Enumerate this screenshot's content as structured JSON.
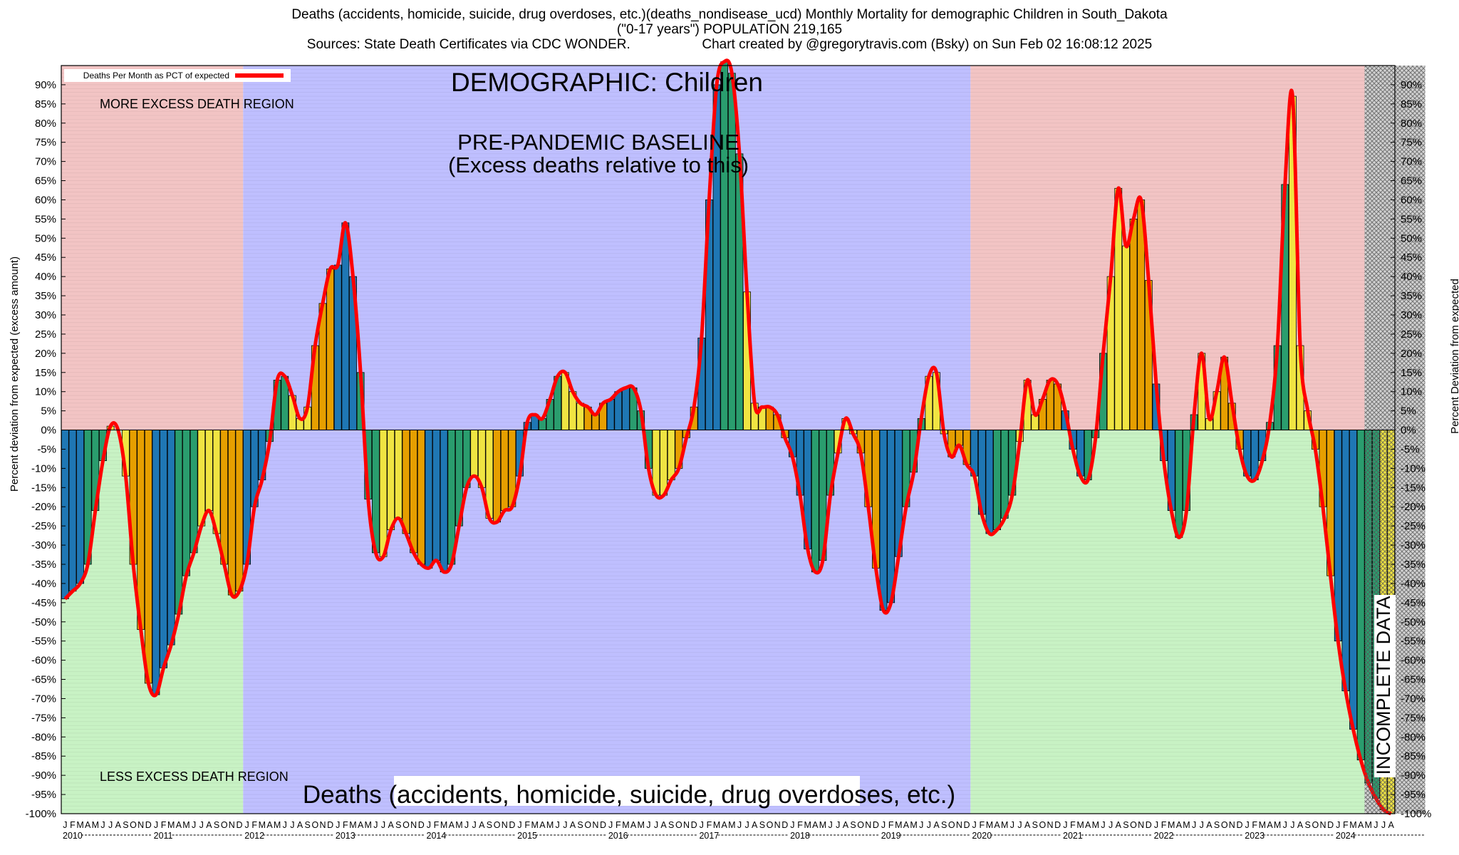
{
  "header": {
    "line1": "Deaths (accidents, homicide, suicide, drug overdoses, etc.)(deaths_nondisease_ucd) Monthly Mortality for demographic Children in South_Dakota",
    "line2": "(\"0-17 years\") POPULATION 219,165",
    "line3_left": "Sources: State Death Certificates via CDC WONDER.",
    "line3_right": "Chart created by @gregorytravis.com (Bsky) on Sun Feb 02 16:08:12 2025"
  },
  "chart_data": {
    "type": "bar",
    "title": "Deaths (accidents, homicide, suicide, drug overdoses, etc.)(deaths_nondisease_ucd) Monthly Mortality for demographic Children in South_Dakota",
    "ylabel_left": "Percent deviation from expected (excess amount)",
    "ylabel_right": "Percent Deviation from expected",
    "ylim": [
      -100,
      95
    ],
    "y_ticks": [
      90,
      85,
      80,
      75,
      70,
      65,
      60,
      55,
      50,
      45,
      40,
      35,
      30,
      25,
      20,
      15,
      10,
      5,
      0,
      -5,
      -10,
      -15,
      -20,
      -25,
      -30,
      -35,
      -40,
      -45,
      -50,
      -55,
      -60,
      -65,
      -70,
      -75,
      -80,
      -85,
      -90,
      -95,
      -100
    ],
    "years": [
      "2010",
      "2011",
      "2012",
      "2013",
      "2014",
      "2015",
      "2016",
      "2017",
      "2018",
      "2019",
      "2020",
      "2021",
      "2022",
      "2023",
      "2024"
    ],
    "month_letters": [
      "J",
      "F",
      "M",
      "A",
      "M",
      "J",
      "J",
      "A",
      "S",
      "O",
      "N",
      "D"
    ],
    "legend": "Deaths Per Month as PCT of expected",
    "grid": true,
    "season_colors": [
      "#1f77b4",
      "#2a9d6e",
      "#f0e442",
      "#e69f00"
    ],
    "line_color": "#ff0000",
    "regions": [
      {
        "label": "pre-2012",
        "start": "2010-01",
        "end": "2011-12",
        "above_color": "#f2c4c4",
        "below_color": "#c8f2c4"
      },
      {
        "label": "baseline",
        "start": "2012-01",
        "end": "2019-12",
        "color": "#bfbfff"
      },
      {
        "label": "post-2020",
        "start": "2020-01",
        "end": "2024-04",
        "above_color": "#f2c4c4",
        "below_color": "#c8f2c4"
      },
      {
        "label": "incomplete",
        "start": "2024-05",
        "end": "2024-12",
        "color": "#d3d3d3"
      }
    ],
    "annotations": {
      "demographic": "DEMOGRAPHIC: Children",
      "baseline_1": "PRE-PANDEMIC BASELINE",
      "baseline_2": "(Excess deaths relative to this)",
      "more_excess": "MORE EXCESS DEATH REGION",
      "less_excess": "LESS EXCESS DEATH REGION",
      "incomplete": "INCOMPLETE DATA",
      "bottom": "Deaths (accidents, homicide, suicide, drug overdoses, etc.)"
    },
    "values": [
      -44,
      -42,
      -40,
      -35,
      -21,
      -8,
      1,
      0,
      -12,
      -35,
      -52,
      -66,
      -69,
      -62,
      -56,
      -48,
      -38,
      -32,
      -25,
      -21,
      -27,
      -35,
      -43,
      -42,
      -35,
      -20,
      -13,
      -3,
      13,
      14,
      9,
      3,
      6,
      22,
      33,
      42,
      43,
      54,
      40,
      15,
      -18,
      -32,
      -33,
      -26,
      -23,
      -27,
      -32,
      -35,
      -36,
      -34,
      -37,
      -35,
      -25,
      -15,
      -12,
      -15,
      -23,
      -24,
      -21,
      -20,
      -12,
      2,
      4,
      3,
      8,
      14,
      15,
      10,
      7,
      6,
      4,
      7,
      8,
      10,
      11,
      11,
      5,
      -10,
      -17,
      -17,
      -13,
      -10,
      -2,
      6,
      24,
      60,
      90,
      96,
      93,
      72,
      36,
      7,
      6,
      6,
      4,
      -2,
      -7,
      -17,
      -31,
      -37,
      -34,
      -17,
      -6,
      3,
      -1,
      -6,
      -20,
      -36,
      -47,
      -45,
      -33,
      -20,
      -11,
      3,
      14,
      15,
      -1,
      -7,
      -4,
      -9,
      -12,
      -22,
      -27,
      -26,
      -23,
      -17,
      -3,
      13,
      4,
      8,
      13,
      12,
      5,
      -5,
      -12,
      -13,
      -2,
      20,
      40,
      63,
      48,
      55,
      60,
      39,
      12,
      -8,
      -21,
      -28,
      -21,
      4,
      20,
      3,
      10,
      19,
      7,
      -5,
      -12,
      -13,
      -8,
      2,
      22,
      64,
      87,
      22,
      5,
      -5,
      -20,
      -38,
      -55,
      -68,
      -78,
      -86,
      -92,
      -96,
      -99,
      -100
    ]
  }
}
